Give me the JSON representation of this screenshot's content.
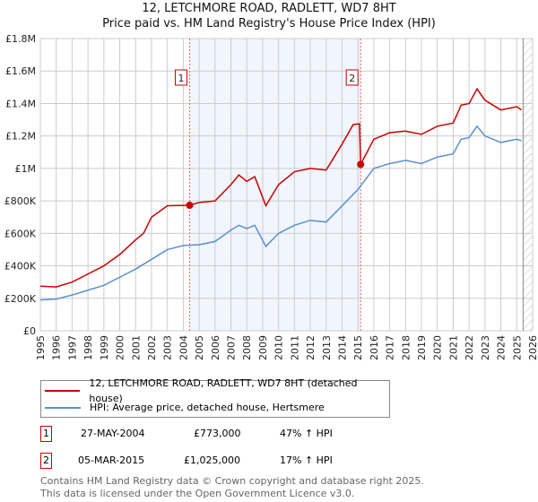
{
  "chart_data": {
    "type": "line",
    "title": "12, LETCHMORE ROAD, RADLETT, WD7 8HT",
    "subtitle": "Price paid vs. HM Land Registry's House Price Index (HPI)",
    "xlim": [
      1995,
      2026
    ],
    "ylim": [
      0,
      1800000
    ],
    "x_ticks": [
      "1995",
      "1996",
      "1997",
      "1998",
      "1999",
      "2000",
      "2001",
      "2002",
      "2003",
      "2004",
      "2005",
      "2006",
      "2007",
      "2008",
      "2009",
      "2010",
      "2011",
      "2012",
      "2013",
      "2014",
      "2015",
      "2016",
      "2017",
      "2018",
      "2019",
      "2020",
      "2021",
      "2022",
      "2023",
      "2024",
      "2025",
      "2026"
    ],
    "y_ticks": [
      {
        "v": 0,
        "label": "£0"
      },
      {
        "v": 200000,
        "label": "£200K"
      },
      {
        "v": 400000,
        "label": "£400K"
      },
      {
        "v": 600000,
        "label": "£600K"
      },
      {
        "v": 800000,
        "label": "£800K"
      },
      {
        "v": 1000000,
        "label": "£1M"
      },
      {
        "v": 1200000,
        "label": "£1.2M"
      },
      {
        "v": 1400000,
        "label": "£1.4M"
      },
      {
        "v": 1600000,
        "label": "£1.6M"
      },
      {
        "v": 1800000,
        "label": "£1.8M"
      }
    ],
    "grid": true,
    "shaded_range": [
      2004.4,
      2015.17
    ],
    "hatched_from": 2025.4,
    "series": [
      {
        "name": "12, LETCHMORE ROAD, RADLETT, WD7 8HT (detached house)",
        "color": "#cc0000",
        "x": [
          1995,
          1996,
          1997,
          1998,
          1999,
          2000,
          2001,
          2001.5,
          2002,
          2003,
          2004.4,
          2005,
          2006,
          2007,
          2007.5,
          2008,
          2008.5,
          2009.2,
          2010,
          2011,
          2012,
          2013,
          2014,
          2014.7,
          2015.1,
          2015.17,
          2016,
          2017,
          2018,
          2019,
          2020,
          2021,
          2021.5,
          2022,
          2022.5,
          2023,
          2024,
          2025,
          2025.3
        ],
        "y": [
          275000,
          270000,
          300000,
          350000,
          400000,
          470000,
          560000,
          600000,
          700000,
          770000,
          773000,
          790000,
          800000,
          900000,
          960000,
          920000,
          950000,
          770000,
          900000,
          980000,
          1000000,
          990000,
          1150000,
          1270000,
          1275000,
          1025000,
          1180000,
          1220000,
          1230000,
          1210000,
          1260000,
          1280000,
          1390000,
          1400000,
          1490000,
          1420000,
          1360000,
          1380000,
          1360000
        ]
      },
      {
        "name": "HPI: Average price, detached house, Hertsmere",
        "color": "#5b8fd0",
        "x": [
          1995,
          1996,
          1997,
          1998,
          1999,
          2000,
          2001,
          2002,
          2003,
          2004,
          2005,
          2006,
          2007,
          2007.5,
          2008,
          2008.5,
          2009.2,
          2010,
          2011,
          2012,
          2013,
          2014,
          2015,
          2016,
          2017,
          2018,
          2019,
          2020,
          2021,
          2021.5,
          2022,
          2022.5,
          2023,
          2024,
          2025,
          2025.3
        ],
        "y": [
          190000,
          195000,
          220000,
          250000,
          280000,
          330000,
          380000,
          440000,
          500000,
          525000,
          530000,
          550000,
          620000,
          650000,
          630000,
          650000,
          520000,
          600000,
          650000,
          680000,
          670000,
          770000,
          870000,
          1000000,
          1030000,
          1050000,
          1030000,
          1070000,
          1090000,
          1180000,
          1190000,
          1260000,
          1200000,
          1160000,
          1180000,
          1170000
        ]
      }
    ],
    "annotations": [
      {
        "label": "1",
        "x": 2004.4,
        "y": 773000
      },
      {
        "label": "2",
        "x": 2015.17,
        "y": 1025000
      }
    ]
  },
  "legend": {
    "red": "12, LETCHMORE ROAD, RADLETT, WD7 8HT (detached house)",
    "blue": "HPI: Average price, detached house, Hertsmere"
  },
  "transactions": [
    {
      "num": "1",
      "date": "27-MAY-2004",
      "price": "£773,000",
      "hpi": "47% ↑ HPI"
    },
    {
      "num": "2",
      "date": "05-MAR-2015",
      "price": "£1,025,000",
      "hpi": "17% ↑ HPI"
    }
  ],
  "footer": {
    "line1": "Contains HM Land Registry data © Crown copyright and database right 2025.",
    "line2": "This data is licensed under the Open Government Licence v3.0."
  }
}
